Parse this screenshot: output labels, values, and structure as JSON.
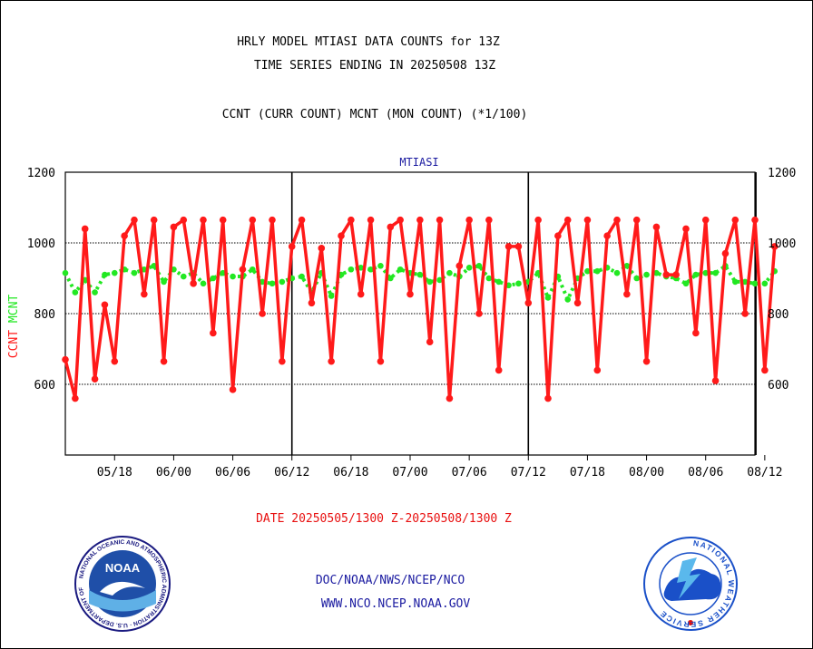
{
  "header": {
    "line1": "HRLY MODEL MTIASI DATA COUNTS for 13Z",
    "line2": "TIME SERIES ENDING IN 20250508 13Z",
    "line3": "CCNT (CURR COUNT) MCNT (MON COUNT) (*1/100)"
  },
  "footer": {
    "date_range": "DATE 20250505/1300 Z-20250508/1300 Z",
    "link1": "DOC/NOAA/NWS/NCEP/NCO",
    "link2": "WWW.NCO.NCEP.NOAA.GOV"
  },
  "logos": {
    "noaa_center": "NOAA",
    "noaa_ring": "NATIONAL OCEANIC AND ATMOSPHERIC ADMINISTRATION · U.S. DEPARTMENT OF COMMERCE ·",
    "nws_ring": "NATIONAL WEATHER SERVICE"
  },
  "colors": {
    "ccnt": "#ff1a1a",
    "mcnt": "#22e822",
    "grid": "#000000",
    "footer_text": "#1a1aa0"
  },
  "chart_data": {
    "type": "line",
    "title": "MTIASI",
    "ylabel_parts": [
      "CCNT",
      "MCNT"
    ],
    "ylim": [
      400,
      1200
    ],
    "yticks": [
      600,
      800,
      1000,
      1200
    ],
    "xlim": [
      0,
      70
    ],
    "xticks": [
      {
        "x": 5,
        "label": "05/18"
      },
      {
        "x": 11,
        "label": "06/00"
      },
      {
        "x": 17,
        "label": "06/06"
      },
      {
        "x": 23,
        "label": "06/12"
      },
      {
        "x": 29,
        "label": "06/18"
      },
      {
        "x": 35,
        "label": "07/00"
      },
      {
        "x": 41,
        "label": "07/06"
      },
      {
        "x": 47,
        "label": "07/12"
      },
      {
        "x": 53,
        "label": "07/18"
      },
      {
        "x": 59,
        "label": "08/00"
      },
      {
        "x": 65,
        "label": "08/06"
      },
      {
        "x": 71,
        "label": "08/12"
      }
    ],
    "day_boundaries": [
      23,
      47,
      70.1
    ],
    "grid": true,
    "series": [
      {
        "name": "CCNT",
        "color": "#ff1a1a",
        "values": [
          670,
          560,
          1040,
          615,
          825,
          665,
          1020,
          1065,
          855,
          1065,
          665,
          1045,
          1065,
          885,
          1065,
          745,
          1065,
          585,
          925,
          1065,
          800,
          1065,
          665,
          990,
          1065,
          830,
          985,
          665,
          1020,
          1065,
          855,
          1065,
          665,
          1045,
          1065,
          855,
          1065,
          720,
          1065,
          560,
          935,
          1065,
          800,
          1065,
          640,
          990,
          990,
          830,
          1065,
          560,
          1020,
          1065,
          830,
          1065,
          640,
          1020,
          1065,
          855,
          1065,
          665,
          1045,
          910,
          910,
          1040,
          745,
          1065,
          610,
          970,
          1065,
          800,
          1065,
          640,
          990
        ]
      },
      {
        "name": "MCNT",
        "color": "#22e822",
        "values": [
          915,
          860,
          895,
          860,
          910,
          915,
          925,
          915,
          925,
          935,
          890,
          925,
          905,
          915,
          885,
          900,
          915,
          905,
          905,
          925,
          890,
          885,
          890,
          900,
          905,
          860,
          915,
          850,
          910,
          925,
          930,
          925,
          935,
          900,
          925,
          915,
          910,
          890,
          895,
          915,
          905,
          930,
          935,
          900,
          890,
          880,
          885,
          890,
          915,
          845,
          905,
          840,
          900,
          920,
          920,
          930,
          915,
          935,
          900,
          910,
          915,
          905,
          900,
          885,
          910,
          915,
          915,
          935,
          890,
          890,
          885,
          885,
          920
        ]
      }
    ]
  }
}
